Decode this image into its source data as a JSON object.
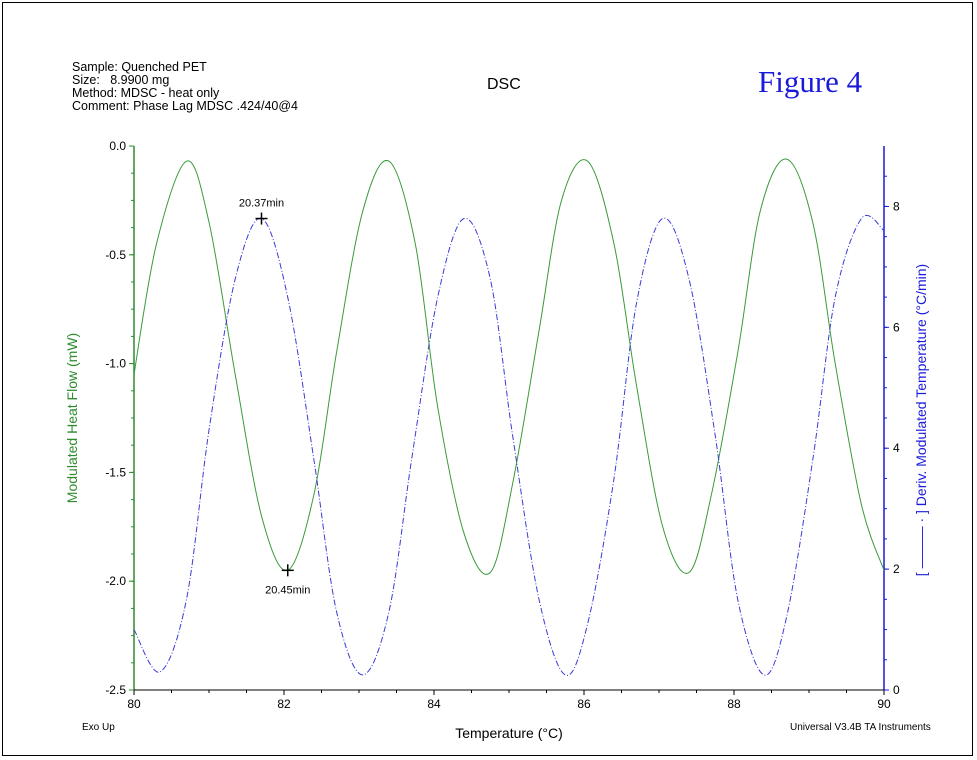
{
  "header": {
    "sample": "Sample: Quenched PET",
    "size": "Size:   8.9900 mg",
    "method": "Method: MDSC - heat only",
    "comment": "Comment: Phase Lag MDSC .424/40@4",
    "title": "DSC",
    "figure_label": "Figure 4"
  },
  "footer": {
    "left": "Exo Up",
    "right": "Universal V3.4B TA Instruments"
  },
  "chart_data": {
    "type": "line",
    "title": "DSC",
    "xlabel": "Temperature (°C)",
    "ylabel_left": "Modulated Heat Flow (mW)",
    "ylabel_right": "[ ——— · ] Deriv. Modulated Temperature (°C/min)",
    "xlim": [
      80,
      90
    ],
    "ylim_left": [
      -2.5,
      0.0
    ],
    "ylim_right": [
      0,
      9
    ],
    "x_ticks": [
      "80",
      "82",
      "84",
      "86",
      "88",
      "90"
    ],
    "y_left_ticks": [
      "0.0",
      "-0.5",
      "-1.0",
      "-1.5",
      "-2.0",
      "-2.5"
    ],
    "y_right_ticks": [
      "0",
      "2",
      "4",
      "6",
      "8"
    ],
    "grid": false,
    "colors": {
      "left_axis": "#2e8b2e",
      "right_axis": "#1a1adb",
      "heat_flow": "#3a9a3a",
      "deriv": "#3b3bd6"
    },
    "series": [
      {
        "name": "Modulated Heat Flow",
        "axis": "left",
        "style": "solid",
        "x": [
          80.0,
          80.3,
          80.7,
          81.0,
          81.35,
          81.7,
          82.05,
          82.4,
          82.7,
          83.05,
          83.4,
          83.75,
          84.05,
          84.4,
          84.75,
          85.05,
          85.4,
          85.7,
          86.05,
          86.4,
          86.7,
          87.05,
          87.4,
          87.7,
          88.05,
          88.35,
          88.7,
          89.05,
          89.35,
          89.7,
          90.0
        ],
        "y": [
          -1.05,
          -0.45,
          -0.07,
          -0.35,
          -1.05,
          -1.7,
          -1.95,
          -1.6,
          -0.95,
          -0.3,
          -0.07,
          -0.45,
          -1.2,
          -1.78,
          -1.96,
          -1.55,
          -0.85,
          -0.25,
          -0.07,
          -0.45,
          -1.1,
          -1.75,
          -1.96,
          -1.6,
          -0.95,
          -0.3,
          -0.06,
          -0.35,
          -1.0,
          -1.65,
          -1.95
        ]
      },
      {
        "name": "Deriv. Modulated Temperature",
        "axis": "right",
        "style": "dash-dot",
        "x": [
          80.0,
          80.35,
          80.7,
          81.0,
          81.35,
          81.7,
          82.05,
          82.4,
          82.7,
          83.05,
          83.4,
          83.7,
          84.05,
          84.4,
          84.75,
          85.05,
          85.4,
          85.75,
          86.05,
          86.4,
          86.7,
          87.05,
          87.4,
          87.75,
          88.05,
          88.4,
          88.7,
          89.05,
          89.35,
          89.7,
          90.0
        ],
        "y": [
          1.0,
          0.3,
          1.5,
          4.3,
          6.8,
          7.8,
          6.5,
          3.8,
          1.3,
          0.25,
          1.3,
          3.8,
          6.5,
          7.8,
          6.8,
          4.2,
          1.5,
          0.25,
          1.1,
          3.5,
          6.4,
          7.8,
          6.8,
          4.2,
          1.5,
          0.25,
          1.2,
          3.8,
          6.5,
          7.8,
          7.6
        ]
      }
    ],
    "annotations": [
      {
        "label": "20.37min",
        "x": 81.7,
        "y_right": 7.8
      },
      {
        "label": "20.45min",
        "x": 82.05,
        "y_left": -1.95
      }
    ]
  }
}
